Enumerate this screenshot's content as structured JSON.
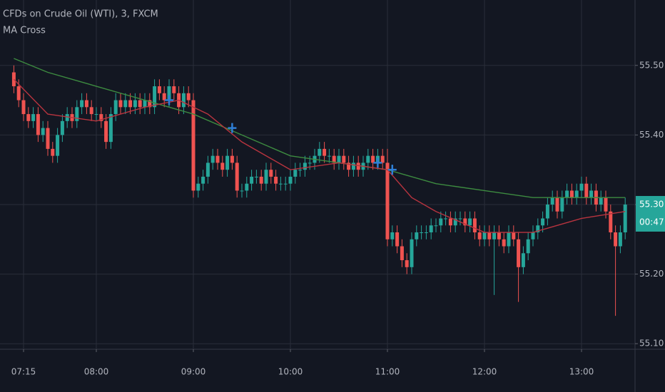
{
  "chart_data": {
    "type": "candlestick",
    "title": "CFDs on Crude Oil (WTI), 3, FXCM",
    "subtitle": "MA Cross",
    "up_color": "#26a69a",
    "down_color": "#ef5350",
    "grid": true,
    "ylim": [
      55.092,
      55.594
    ],
    "yticks": [
      {
        "value": 55.5,
        "label": "55.50"
      },
      {
        "value": 55.4,
        "label": "55.40"
      },
      {
        "value": 55.3,
        "label": "55.30"
      },
      {
        "value": 55.2,
        "label": "55.20"
      },
      {
        "value": 55.1,
        "label": "55.10"
      }
    ],
    "xticks": [
      "07:15",
      "08:00",
      "09:00",
      "10:00",
      "11:00",
      "12:00",
      "13:00"
    ],
    "last_price": {
      "value": 55.3,
      "label": "55.30"
    },
    "countdown": "00:47",
    "x": [
      "07:09",
      "07:12",
      "07:15",
      "07:18",
      "07:21",
      "07:24",
      "07:27",
      "07:30",
      "07:33",
      "07:36",
      "07:39",
      "07:42",
      "07:45",
      "07:48",
      "07:51",
      "07:54",
      "07:57",
      "08:00",
      "08:03",
      "08:06",
      "08:09",
      "08:12",
      "08:15",
      "08:18",
      "08:21",
      "08:24",
      "08:27",
      "08:30",
      "08:33",
      "08:36",
      "08:39",
      "08:42",
      "08:45",
      "08:48",
      "08:51",
      "08:54",
      "08:57",
      "09:00",
      "09:03",
      "09:06",
      "09:09",
      "09:12",
      "09:15",
      "09:18",
      "09:21",
      "09:24",
      "09:27",
      "09:30",
      "09:33",
      "09:36",
      "09:39",
      "09:42",
      "09:45",
      "09:48",
      "09:51",
      "09:54",
      "09:57",
      "10:00",
      "10:03",
      "10:06",
      "10:09",
      "10:12",
      "10:15",
      "10:18",
      "10:21",
      "10:24",
      "10:27",
      "10:30",
      "10:33",
      "10:36",
      "10:39",
      "10:42",
      "10:45",
      "10:48",
      "10:51",
      "10:54",
      "10:57",
      "11:00",
      "11:03",
      "11:06",
      "11:09",
      "11:12",
      "11:15",
      "11:18",
      "11:21",
      "11:24",
      "11:27",
      "11:30",
      "11:33",
      "11:36",
      "11:39",
      "11:42",
      "11:45",
      "11:48",
      "11:51",
      "11:54",
      "11:57",
      "12:00",
      "12:03",
      "12:06",
      "12:09",
      "12:12",
      "12:15",
      "12:18",
      "12:21",
      "12:24",
      "12:27",
      "12:30",
      "12:33",
      "12:36",
      "12:39",
      "12:42",
      "12:45",
      "12:48",
      "12:51",
      "12:54",
      "12:57",
      "13:00",
      "13:03",
      "13:06",
      "13:09",
      "13:12",
      "13:15",
      "13:18",
      "13:21",
      "13:24",
      "13:27"
    ],
    "open": [
      55.49,
      55.47,
      55.45,
      55.43,
      55.42,
      55.43,
      55.4,
      55.41,
      55.38,
      55.37,
      55.4,
      55.42,
      55.43,
      55.42,
      55.44,
      55.45,
      55.44,
      55.43,
      55.43,
      55.42,
      55.39,
      55.43,
      55.45,
      55.44,
      55.45,
      55.44,
      55.45,
      55.44,
      55.45,
      55.44,
      55.47,
      55.46,
      55.45,
      55.47,
      55.46,
      55.44,
      55.46,
      55.45,
      55.32,
      55.33,
      55.34,
      55.36,
      55.37,
      55.36,
      55.35,
      55.37,
      55.36,
      55.32,
      55.32,
      55.33,
      55.34,
      55.34,
      55.33,
      55.35,
      55.34,
      55.33,
      55.33,
      55.33,
      55.34,
      55.35,
      55.35,
      55.36,
      55.36,
      55.37,
      55.38,
      55.37,
      55.37,
      55.36,
      55.37,
      55.36,
      55.35,
      55.36,
      55.35,
      55.36,
      55.37,
      55.36,
      55.37,
      55.36,
      55.25,
      55.26,
      55.24,
      55.22,
      55.21,
      55.25,
      55.26,
      55.26,
      55.26,
      55.27,
      55.27,
      55.28,
      55.28,
      55.27,
      55.28,
      55.28,
      55.27,
      55.28,
      55.26,
      55.25,
      55.26,
      55.25,
      55.26,
      55.25,
      55.24,
      55.26,
      55.25,
      55.21,
      55.23,
      55.25,
      55.26,
      55.27,
      55.28,
      55.3,
      55.31,
      55.29,
      55.31,
      55.32,
      55.31,
      55.32,
      55.33,
      55.31,
      55.32,
      55.3,
      55.31,
      55.29,
      55.26,
      55.24,
      55.26
    ],
    "high": [
      55.5,
      55.48,
      55.46,
      55.44,
      55.44,
      55.44,
      55.42,
      55.42,
      55.39,
      55.41,
      55.43,
      55.44,
      55.44,
      55.45,
      55.46,
      55.46,
      55.45,
      55.44,
      55.44,
      55.43,
      55.44,
      55.46,
      55.46,
      55.46,
      55.46,
      55.46,
      55.46,
      55.46,
      55.46,
      55.48,
      55.48,
      55.47,
      55.48,
      55.48,
      55.47,
      55.47,
      55.47,
      55.46,
      55.34,
      55.35,
      55.37,
      55.38,
      55.38,
      55.37,
      55.38,
      55.38,
      55.37,
      55.33,
      55.34,
      55.35,
      55.35,
      55.35,
      55.36,
      55.36,
      55.35,
      55.34,
      55.34,
      55.35,
      55.36,
      55.36,
      55.37,
      55.37,
      55.38,
      55.39,
      55.39,
      55.38,
      55.38,
      55.38,
      55.38,
      55.37,
      55.37,
      55.37,
      55.37,
      55.38,
      55.38,
      55.38,
      55.38,
      55.38,
      55.27,
      55.27,
      55.25,
      55.23,
      55.26,
      55.27,
      55.27,
      55.27,
      55.28,
      55.28,
      55.29,
      55.29,
      55.29,
      55.29,
      55.29,
      55.29,
      55.29,
      55.29,
      55.27,
      55.27,
      55.27,
      55.27,
      55.27,
      55.26,
      55.27,
      55.27,
      55.26,
      55.24,
      55.26,
      55.27,
      55.28,
      55.29,
      55.31,
      55.32,
      55.32,
      55.32,
      55.33,
      55.33,
      55.33,
      55.34,
      55.34,
      55.33,
      55.33,
      55.32,
      55.32,
      55.3,
      55.27,
      55.27,
      55.31
    ],
    "low": [
      55.46,
      55.44,
      55.42,
      55.41,
      55.41,
      55.39,
      55.39,
      55.37,
      55.36,
      55.36,
      55.39,
      55.41,
      55.41,
      55.41,
      55.43,
      55.43,
      55.42,
      55.42,
      55.41,
      55.38,
      55.38,
      55.42,
      55.43,
      55.43,
      55.43,
      55.43,
      55.43,
      55.43,
      55.43,
      55.43,
      55.45,
      55.44,
      55.44,
      55.45,
      55.43,
      55.43,
      55.44,
      55.31,
      55.31,
      55.32,
      55.33,
      55.35,
      55.35,
      55.34,
      55.34,
      55.35,
      55.31,
      55.31,
      55.31,
      55.32,
      55.33,
      55.32,
      55.32,
      55.33,
      55.32,
      55.32,
      55.32,
      55.32,
      55.33,
      55.34,
      55.34,
      55.35,
      55.35,
      55.36,
      55.36,
      55.36,
      55.35,
      55.35,
      55.35,
      55.34,
      55.34,
      55.34,
      55.34,
      55.35,
      55.35,
      55.35,
      55.35,
      55.24,
      55.24,
      55.23,
      55.21,
      55.2,
      55.2,
      55.24,
      55.25,
      55.25,
      55.25,
      55.26,
      55.26,
      55.27,
      55.26,
      55.26,
      55.27,
      55.26,
      55.26,
      55.25,
      55.24,
      55.24,
      55.24,
      55.17,
      55.24,
      55.23,
      55.23,
      55.24,
      55.16,
      55.2,
      55.22,
      55.24,
      55.25,
      55.26,
      55.27,
      55.29,
      55.28,
      55.28,
      55.3,
      55.3,
      55.3,
      55.31,
      55.3,
      55.3,
      55.29,
      55.29,
      55.28,
      55.25,
      55.14,
      55.23,
      55.25
    ],
    "close": [
      55.47,
      55.45,
      55.43,
      55.42,
      55.43,
      55.4,
      55.41,
      55.38,
      55.37,
      55.4,
      55.42,
      55.43,
      55.42,
      55.44,
      55.45,
      55.44,
      55.43,
      55.43,
      55.42,
      55.39,
      55.43,
      55.45,
      55.44,
      55.45,
      55.44,
      55.45,
      55.44,
      55.45,
      55.44,
      55.47,
      55.46,
      55.45,
      55.47,
      55.46,
      55.44,
      55.46,
      55.45,
      55.32,
      55.33,
      55.34,
      55.36,
      55.37,
      55.36,
      55.35,
      55.37,
      55.36,
      55.32,
      55.32,
      55.33,
      55.34,
      55.34,
      55.33,
      55.35,
      55.34,
      55.33,
      55.33,
      55.33,
      55.34,
      55.35,
      55.35,
      55.36,
      55.36,
      55.37,
      55.38,
      55.37,
      55.37,
      55.36,
      55.37,
      55.36,
      55.35,
      55.36,
      55.35,
      55.36,
      55.37,
      55.36,
      55.37,
      55.36,
      55.25,
      55.26,
      55.24,
      55.22,
      55.21,
      55.25,
      55.26,
      55.26,
      55.26,
      55.27,
      55.27,
      55.28,
      55.28,
      55.27,
      55.28,
      55.28,
      55.27,
      55.28,
      55.26,
      55.25,
      55.26,
      55.25,
      55.26,
      55.25,
      55.24,
      55.26,
      55.25,
      55.21,
      55.23,
      55.25,
      55.26,
      55.27,
      55.28,
      55.3,
      55.31,
      55.29,
      55.31,
      55.32,
      55.31,
      55.32,
      55.33,
      55.31,
      55.32,
      55.3,
      55.31,
      55.29,
      55.26,
      55.24,
      55.26,
      55.3
    ],
    "lines": [
      {
        "color": "#3d8b40",
        "x": [
          "07:09",
          "07:30",
          "08:00",
          "08:30",
          "09:00",
          "09:30",
          "10:00",
          "10:30",
          "11:00",
          "11:30",
          "12:00",
          "12:30",
          "13:00",
          "13:27"
        ],
        "values": [
          55.51,
          55.49,
          55.47,
          55.45,
          55.43,
          55.4,
          55.37,
          55.36,
          55.35,
          55.33,
          55.32,
          55.31,
          55.31,
          55.31
        ]
      },
      {
        "color": "#b8343f",
        "x": [
          "07:09",
          "07:30",
          "08:00",
          "08:30",
          "08:51",
          "09:09",
          "09:30",
          "10:00",
          "10:30",
          "11:00",
          "11:15",
          "11:30",
          "12:00",
          "12:30",
          "13:00",
          "13:27"
        ],
        "values": [
          55.48,
          55.43,
          55.42,
          55.44,
          55.45,
          55.43,
          55.39,
          55.35,
          55.36,
          55.35,
          55.31,
          55.29,
          55.26,
          55.26,
          55.28,
          55.29
        ]
      }
    ],
    "crosses": {
      "color": "#2f7fd6",
      "x": [
        "08:45",
        "09:24",
        "10:54",
        "11:03"
      ],
      "values": [
        55.45,
        55.41,
        55.36,
        55.35
      ]
    }
  }
}
